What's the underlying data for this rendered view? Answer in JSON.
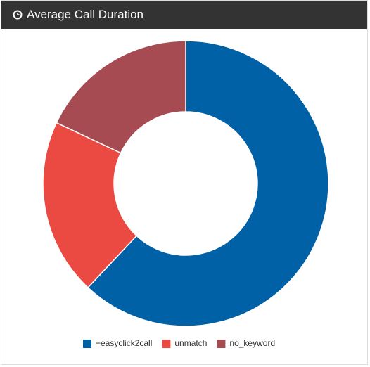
{
  "chart_data": {
    "type": "donut",
    "title": "Average Call Duration",
    "categories": [
      "+easyclick2call",
      "unmatch",
      "no_keyword"
    ],
    "values": [
      62,
      20,
      18
    ],
    "colors": [
      "#0061a6",
      "#ea4a42",
      "#a64b52"
    ]
  }
}
